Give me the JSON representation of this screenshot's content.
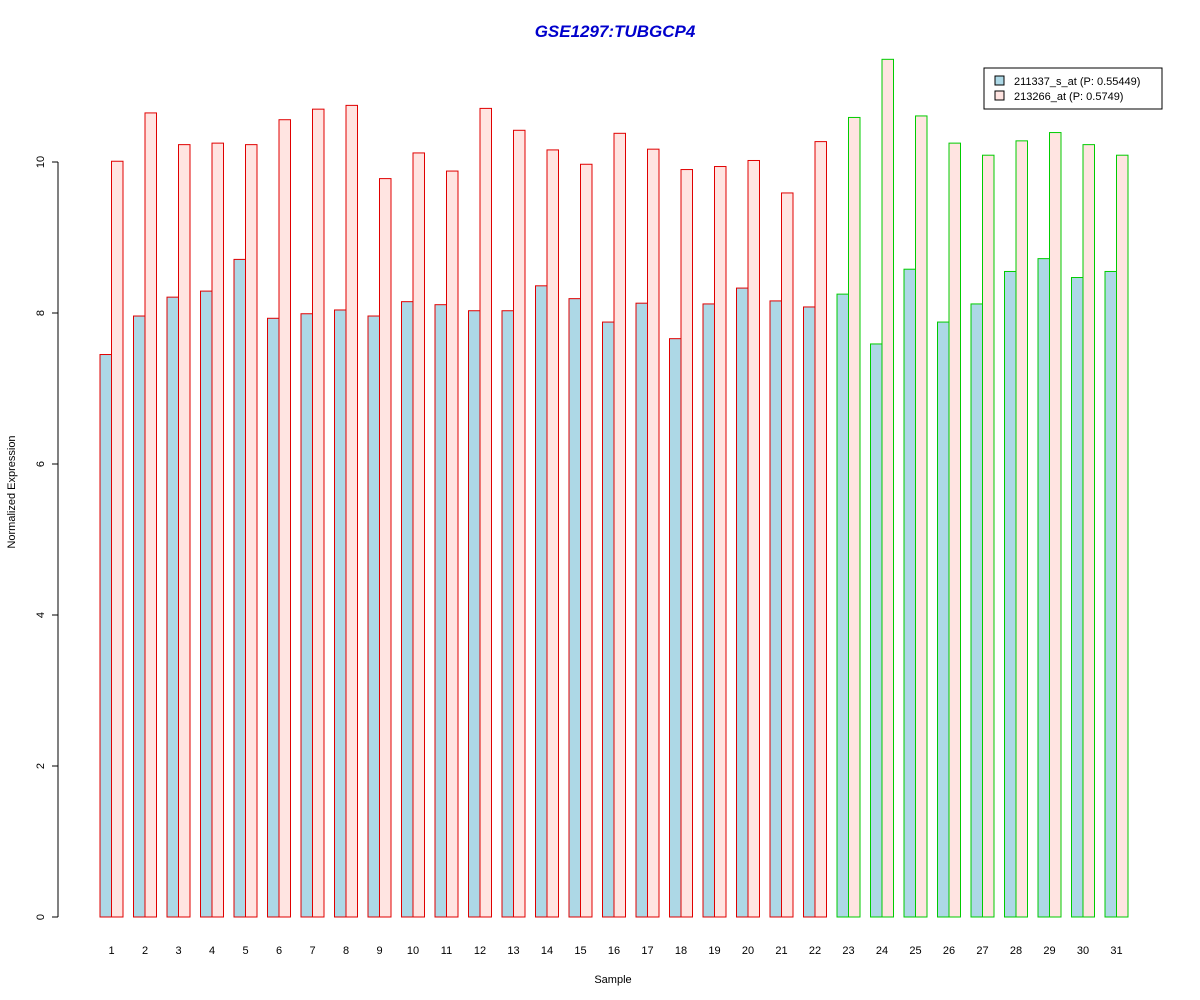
{
  "chart_data": {
    "type": "bar",
    "title": "GSE1297:TUBGCP4",
    "xlabel": "Sample",
    "ylabel": "Normalized Expression",
    "ylim": [
      0,
      11.5
    ],
    "yticks": [
      0,
      2,
      4,
      6,
      8,
      10
    ],
    "grid": false,
    "legend_position": "top-right",
    "categories": [
      "1",
      "2",
      "3",
      "4",
      "5",
      "6",
      "7",
      "8",
      "9",
      "10",
      "11",
      "12",
      "13",
      "14",
      "15",
      "16",
      "17",
      "18",
      "19",
      "20",
      "21",
      "22",
      "23",
      "24",
      "25",
      "26",
      "27",
      "28",
      "29",
      "30",
      "31"
    ],
    "group_border_colors": [
      "#e00000",
      "#e00000",
      "#e00000",
      "#e00000",
      "#e00000",
      "#e00000",
      "#e00000",
      "#e00000",
      "#e00000",
      "#e00000",
      "#e00000",
      "#e00000",
      "#e00000",
      "#e00000",
      "#e00000",
      "#e00000",
      "#e00000",
      "#e00000",
      "#e00000",
      "#e00000",
      "#e00000",
      "#e00000",
      "#00cc00",
      "#00cc00",
      "#00cc00",
      "#00cc00",
      "#00cc00",
      "#00cc00",
      "#00cc00",
      "#00cc00",
      "#00cc00"
    ],
    "series": [
      {
        "name": "211337_s_at (P: 0.55449)",
        "fill": "#add8e6",
        "values": [
          7.45,
          7.96,
          8.21,
          8.29,
          8.71,
          7.93,
          7.99,
          8.04,
          7.96,
          8.15,
          8.11,
          8.03,
          8.03,
          8.36,
          8.19,
          7.88,
          8.13,
          7.66,
          8.12,
          8.33,
          8.16,
          8.08,
          8.25,
          7.59,
          8.58,
          7.88,
          8.12,
          8.55,
          8.72,
          8.47,
          8.55
        ]
      },
      {
        "name": "213266_at (P: 0.5749)",
        "fill": "#ffe4e1",
        "values": [
          10.01,
          10.65,
          10.23,
          10.25,
          10.23,
          10.56,
          10.7,
          10.75,
          9.78,
          10.12,
          9.88,
          10.71,
          10.42,
          10.16,
          9.97,
          10.38,
          10.17,
          9.9,
          9.94,
          10.02,
          9.59,
          10.27,
          10.59,
          11.36,
          10.61,
          10.25,
          10.09,
          10.28,
          10.39,
          10.23,
          10.09
        ]
      }
    ]
  }
}
